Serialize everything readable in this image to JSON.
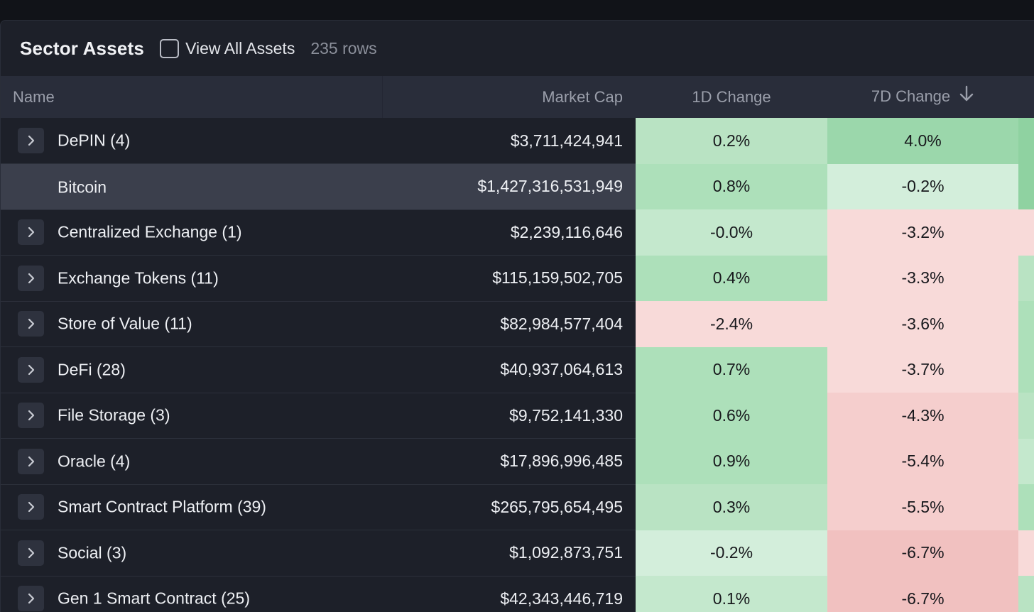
{
  "header": {
    "title": "Sector Assets",
    "view_all_label": "View All Assets",
    "row_count": "235 rows"
  },
  "columns": {
    "name": "Name",
    "market_cap": "Market Cap",
    "change_1d": "1D Change",
    "change_7d": "7D Change"
  },
  "colors": {
    "green_strong": "#9bd7ab",
    "green_mid": "#ade0ba",
    "green_light": "#c4e8cd",
    "green_pale": "#d3eedb",
    "red_pale": "#f8dad9",
    "red_light": "#f5cecd",
    "red_mid": "#f1c1c0"
  },
  "rows": [
    {
      "name": "DePIN (4)",
      "market_cap": "$3,711,424,941",
      "change_1d": "0.2%",
      "change_7d": "4.0%",
      "c1": "#b9e3c3",
      "c7": "#9bd7ab",
      "cx": "#8fd2a1",
      "expandable": true
    },
    {
      "name": "Bitcoin",
      "market_cap": "$1,427,316,531,949",
      "change_1d": "0.8%",
      "change_7d": "-0.2%",
      "c1": "#ade0ba",
      "c7": "#d3eedb",
      "cx": "#8fd2a1",
      "expandable": false
    },
    {
      "name": "Centralized Exchange (1)",
      "market_cap": "$2,239,116,646",
      "change_1d": "-0.0%",
      "change_7d": "-3.2%",
      "c1": "#c4e8cd",
      "c7": "#f8dad9",
      "cx": "#f8dad9",
      "expandable": true
    },
    {
      "name": "Exchange Tokens (11)",
      "market_cap": "$115,159,502,705",
      "change_1d": "0.4%",
      "change_7d": "-3.3%",
      "c1": "#ade0ba",
      "c7": "#f8dad9",
      "cx": "#b9e3c3",
      "expandable": true
    },
    {
      "name": "Store of Value (11)",
      "market_cap": "$82,984,577,404",
      "change_1d": "-2.4%",
      "change_7d": "-3.6%",
      "c1": "#f8dad9",
      "c7": "#f8dad9",
      "cx": "#ade0ba",
      "expandable": true
    },
    {
      "name": "DeFi (28)",
      "market_cap": "$40,937,064,613",
      "change_1d": "0.7%",
      "change_7d": "-3.7%",
      "c1": "#ade0ba",
      "c7": "#f8dad9",
      "cx": "#ade0ba",
      "expandable": true
    },
    {
      "name": "File Storage (3)",
      "market_cap": "$9,752,141,330",
      "change_1d": "0.6%",
      "change_7d": "-4.3%",
      "c1": "#ade0ba",
      "c7": "#f5cecd",
      "cx": "#b9e3c3",
      "expandable": true
    },
    {
      "name": "Oracle (4)",
      "market_cap": "$17,896,996,485",
      "change_1d": "0.9%",
      "change_7d": "-5.4%",
      "c1": "#ade0ba",
      "c7": "#f5cecd",
      "cx": "#c4e8cd",
      "expandable": true
    },
    {
      "name": "Smart Contract Platform (39)",
      "market_cap": "$265,795,654,495",
      "change_1d": "0.3%",
      "change_7d": "-5.5%",
      "c1": "#b9e3c3",
      "c7": "#f5cecd",
      "cx": "#ade0ba",
      "expandable": true
    },
    {
      "name": "Social (3)",
      "market_cap": "$1,092,873,751",
      "change_1d": "-0.2%",
      "change_7d": "-6.7%",
      "c1": "#d3eedb",
      "c7": "#f1c1c0",
      "cx": "#f8dad9",
      "expandable": true
    },
    {
      "name": "Gen 1 Smart Contract (25)",
      "market_cap": "$42,343,446,719",
      "change_1d": "0.1%",
      "change_7d": "-6.7%",
      "c1": "#c4e8cd",
      "c7": "#f1c1c0",
      "cx": "#b9e3c3",
      "expandable": true
    }
  ]
}
